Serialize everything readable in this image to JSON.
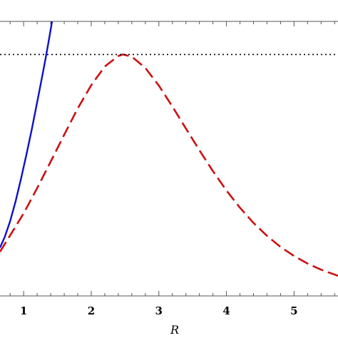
{
  "chart_data": {
    "type": "line",
    "title": "",
    "xlabel": "R",
    "ylabel": "",
    "xlim": [
      0.65,
      5.65
    ],
    "ylim": [
      0,
      1.12
    ],
    "x_ticks": [
      "1",
      "2",
      "3",
      "4",
      "5"
    ],
    "grid": false,
    "series": [
      {
        "style": "solid",
        "color": "#1010c8",
        "x": [
          0.65,
          0.72,
          0.8,
          0.88,
          0.96,
          1.04,
          1.12,
          1.2,
          1.26,
          1.32,
          1.37,
          1.42
        ],
        "y": [
          0.197,
          0.24,
          0.305,
          0.385,
          0.477,
          0.576,
          0.68,
          0.79,
          0.875,
          0.962,
          1.04,
          1.12
        ]
      },
      {
        "style": "dashed",
        "color": "#cc1010",
        "x": [
          0.65,
          0.8,
          1.0,
          1.2,
          1.4,
          1.6,
          1.8,
          2.0,
          2.2,
          2.4,
          2.47,
          2.6,
          2.8,
          3.0,
          3.2,
          3.4,
          3.6,
          3.8,
          4.0,
          4.2,
          4.4,
          4.6,
          4.8,
          5.0,
          5.2,
          5.4,
          5.65
        ],
        "y": [
          0.18,
          0.247,
          0.337,
          0.44,
          0.548,
          0.658,
          0.765,
          0.86,
          0.936,
          0.979,
          0.985,
          0.976,
          0.93,
          0.858,
          0.773,
          0.683,
          0.594,
          0.509,
          0.43,
          0.36,
          0.298,
          0.245,
          0.2,
          0.163,
          0.132,
          0.107,
          0.082
        ]
      },
      {
        "style": "dotted",
        "color": "#000000",
        "x": [
          0.65,
          5.65
        ],
        "y": [
          0.985,
          0.985
        ]
      }
    ]
  }
}
